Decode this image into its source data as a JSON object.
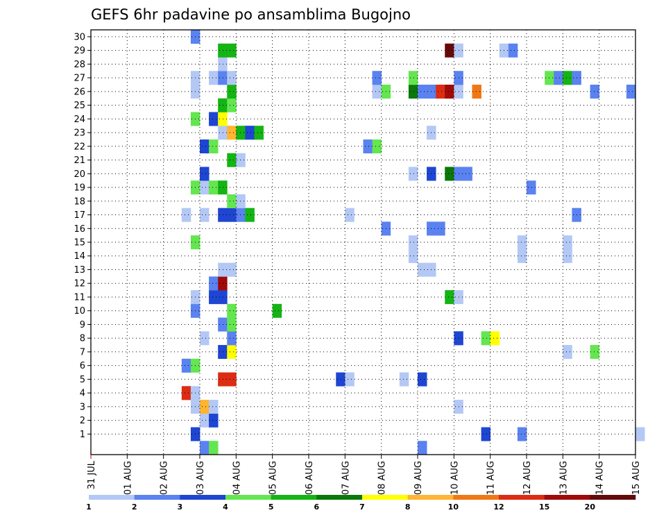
{
  "chart_data": {
    "type": "heatmap",
    "title": "GEFS 6hr padavine po ansamblima Bugojno",
    "x_tick_labels": [
      "31 JUL",
      "01 AUG",
      "02 AUG",
      "03 AUG",
      "04 AUG",
      "05 AUG",
      "06 AUG",
      "07 AUG",
      "08 AUG",
      "09 AUG",
      "10 AUG",
      "11 AUG",
      "12 AUG",
      "13 AUG",
      "14 AUG",
      "15 AUG"
    ],
    "x_steps_per_day": 4,
    "y_tick_labels": [
      "1",
      "2",
      "3",
      "4",
      "5",
      "6",
      "7",
      "8",
      "9",
      "10",
      "11",
      "12",
      "13",
      "14",
      "15",
      "16",
      "17",
      "18",
      "19",
      "20",
      "21",
      "22",
      "23",
      "24",
      "25",
      "26",
      "27",
      "28",
      "29",
      "30"
    ],
    "grid": true,
    "legend_position": "bottom",
    "legend": {
      "labels": [
        "1",
        "2",
        "3",
        "4",
        "5",
        "6",
        "7",
        "8",
        "10",
        "12",
        "15",
        "20"
      ],
      "colors": [
        "#b4c8f5",
        "#5a82f0",
        "#1e46d2",
        "#64e650",
        "#14b414",
        "#0a780a",
        "#ffff00",
        "#ffb432",
        "#f07814",
        "#dc2d14",
        "#a00a0a",
        "#640a0a"
      ]
    },
    "members": [
      {
        "member": 0,
        "cells": [
          [
            12,
            2
          ],
          [
            13,
            4
          ],
          [
            36,
            2
          ]
        ]
      },
      {
        "member": 1,
        "cells": [
          [
            11,
            3
          ],
          [
            43,
            3
          ],
          [
            47,
            2
          ],
          [
            60,
            1
          ]
        ]
      },
      {
        "member": 2,
        "cells": [
          [
            12,
            1
          ],
          [
            13,
            3
          ]
        ]
      },
      {
        "member": 3,
        "cells": [
          [
            11,
            1
          ],
          [
            12,
            8
          ],
          [
            13,
            1
          ],
          [
            40,
            1
          ]
        ]
      },
      {
        "member": 4,
        "cells": [
          [
            10,
            10
          ],
          [
            11,
            1
          ]
        ]
      },
      {
        "member": 5,
        "cells": [
          [
            14,
            10
          ],
          [
            15,
            10
          ],
          [
            27,
            3
          ],
          [
            28,
            1
          ],
          [
            34,
            1
          ],
          [
            36,
            3
          ]
        ]
      },
      {
        "member": 6,
        "cells": [
          [
            10,
            2
          ],
          [
            11,
            4
          ]
        ]
      },
      {
        "member": 7,
        "cells": [
          [
            14,
            3
          ],
          [
            15,
            7
          ],
          [
            52,
            1
          ],
          [
            55,
            4
          ]
        ]
      },
      {
        "member": 8,
        "cells": [
          [
            12,
            1
          ],
          [
            15,
            2
          ],
          [
            40,
            3
          ],
          [
            43,
            4
          ],
          [
            44,
            7
          ]
        ]
      },
      {
        "member": 9,
        "cells": [
          [
            14,
            2
          ],
          [
            15,
            4
          ]
        ]
      },
      {
        "member": 10,
        "cells": [
          [
            11,
            2
          ],
          [
            15,
            4
          ],
          [
            20,
            5
          ]
        ]
      },
      {
        "member": 11,
        "cells": [
          [
            11,
            1
          ],
          [
            13,
            3
          ],
          [
            14,
            3
          ],
          [
            39,
            5
          ],
          [
            40,
            1
          ]
        ]
      },
      {
        "member": 12,
        "cells": [
          [
            13,
            2
          ],
          [
            14,
            11
          ]
        ]
      },
      {
        "member": 13,
        "cells": [
          [
            14,
            1
          ],
          [
            15,
            1
          ],
          [
            36,
            1
          ],
          [
            37,
            1
          ]
        ]
      },
      {
        "member": 14,
        "cells": [
          [
            35,
            1
          ],
          [
            47,
            1
          ],
          [
            52,
            1
          ]
        ]
      },
      {
        "member": 15,
        "cells": [
          [
            11,
            4
          ],
          [
            35,
            1
          ],
          [
            47,
            1
          ],
          [
            52,
            1
          ]
        ]
      },
      {
        "member": 16,
        "cells": [
          [
            32,
            2
          ],
          [
            37,
            2
          ],
          [
            38,
            2
          ]
        ]
      },
      {
        "member": 17,
        "cells": [
          [
            10,
            1
          ],
          [
            12,
            1
          ],
          [
            14,
            3
          ],
          [
            15,
            3
          ],
          [
            16,
            2
          ],
          [
            17,
            5
          ],
          [
            28,
            1
          ],
          [
            53,
            2
          ]
        ]
      },
      {
        "member": 18,
        "cells": [
          [
            15,
            4
          ],
          [
            16,
            1
          ]
        ]
      },
      {
        "member": 19,
        "cells": [
          [
            11,
            4
          ],
          [
            12,
            1
          ],
          [
            13,
            4
          ],
          [
            14,
            5
          ],
          [
            48,
            2
          ]
        ]
      },
      {
        "member": 20,
        "cells": [
          [
            12,
            3
          ],
          [
            35,
            1
          ],
          [
            37,
            3
          ],
          [
            39,
            6
          ],
          [
            40,
            2
          ],
          [
            41,
            2
          ]
        ]
      },
      {
        "member": 21,
        "cells": [
          [
            15,
            5
          ],
          [
            16,
            1
          ]
        ]
      },
      {
        "member": 22,
        "cells": [
          [
            12,
            3
          ],
          [
            13,
            4
          ],
          [
            30,
            2
          ],
          [
            31,
            4
          ]
        ]
      },
      {
        "member": 23,
        "cells": [
          [
            14,
            1
          ],
          [
            15,
            8
          ],
          [
            16,
            5
          ],
          [
            17,
            3
          ],
          [
            18,
            5
          ],
          [
            37,
            1
          ]
        ]
      },
      {
        "member": 24,
        "cells": [
          [
            11,
            4
          ],
          [
            13,
            3
          ],
          [
            14,
            7
          ]
        ]
      },
      {
        "member": 25,
        "cells": [
          [
            14,
            5
          ],
          [
            15,
            4
          ]
        ]
      },
      {
        "member": 26,
        "cells": [
          [
            11,
            1
          ],
          [
            15,
            5
          ],
          [
            31,
            1
          ],
          [
            32,
            4
          ],
          [
            35,
            6
          ],
          [
            36,
            2
          ],
          [
            37,
            2
          ],
          [
            38,
            10
          ],
          [
            39,
            11
          ],
          [
            40,
            1
          ],
          [
            42,
            9
          ],
          [
            55,
            2
          ],
          [
            59,
            2
          ]
        ]
      },
      {
        "member": 27,
        "cells": [
          [
            11,
            1
          ],
          [
            13,
            1
          ],
          [
            14,
            2
          ],
          [
            15,
            1
          ],
          [
            31,
            2
          ],
          [
            35,
            4
          ],
          [
            40,
            2
          ],
          [
            50,
            4
          ],
          [
            51,
            2
          ],
          [
            52,
            5
          ],
          [
            53,
            2
          ]
        ]
      },
      {
        "member": 28,
        "cells": [
          [
            14,
            1
          ]
        ]
      },
      {
        "member": 29,
        "cells": [
          [
            14,
            5
          ],
          [
            15,
            5
          ],
          [
            39,
            12
          ],
          [
            40,
            1
          ],
          [
            45,
            1
          ],
          [
            46,
            2
          ]
        ]
      },
      {
        "member": 30,
        "cells": [
          [
            11,
            2
          ]
        ]
      }
    ]
  }
}
